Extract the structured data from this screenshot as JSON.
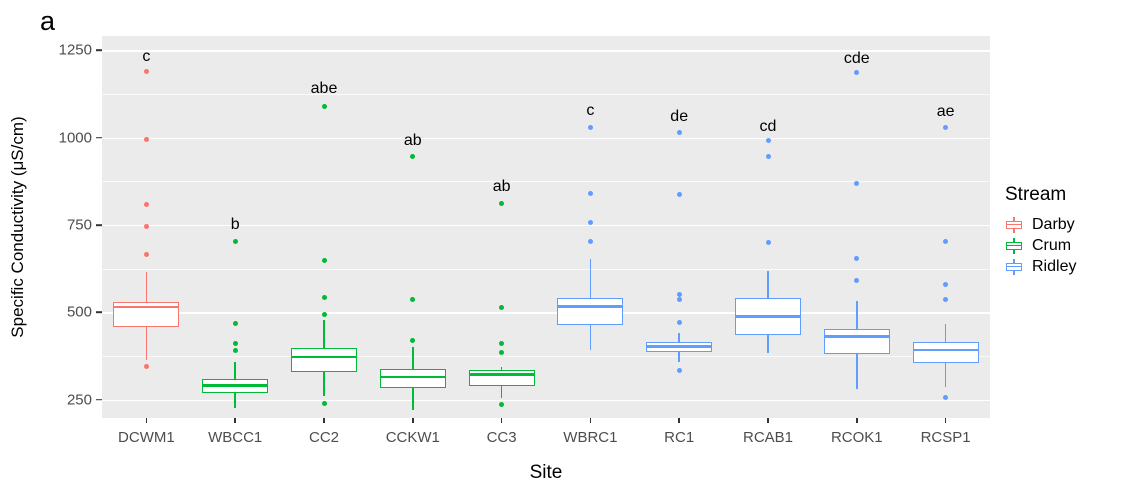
{
  "figure": {
    "panel_label": "a",
    "panel_bg": "#ebebeb",
    "grid_color": "#ffffff",
    "tick_text_color": "#4d4d4d"
  },
  "y_axis": {
    "title": "Specific Conductivity (μS/cm)",
    "ticks": [
      250,
      500,
      750,
      1000,
      1250
    ],
    "minor_ticks": [
      375,
      625,
      875,
      1125
    ]
  },
  "x_axis": {
    "title": "Site"
  },
  "legend": {
    "title": "Stream",
    "entries": [
      {
        "label": "Darby",
        "color": "#F8766D"
      },
      {
        "label": "Crum",
        "color": "#00BA38"
      },
      {
        "label": "Ridley",
        "color": "#619CFF"
      }
    ]
  },
  "chart_data": {
    "type": "boxplot",
    "title": "a",
    "xlabel": "Site",
    "ylabel": "Specific Conductivity (μS/cm)",
    "ylim": [
      198,
      1291
    ],
    "y_ticks": [
      250,
      500,
      750,
      1000,
      1250
    ],
    "grid": true,
    "legend_position": "right",
    "categories": [
      "DCWM1",
      "WBCC1",
      "CC2",
      "CCKW1",
      "CC3",
      "WBRC1",
      "RC1",
      "RCAB1",
      "RCOK1",
      "RCSP1"
    ],
    "groups": [
      {
        "site": "DCWM1",
        "stream": "Darby",
        "letter": "c",
        "letter_y": 1230,
        "whislo": 365,
        "q1": 458,
        "med": 515,
        "q3": 531,
        "whishi": 617,
        "outliers": [
          345,
          665,
          745,
          810,
          995,
          1190
        ]
      },
      {
        "site": "WBCC1",
        "stream": "Crum",
        "letter": "b",
        "letter_y": 750,
        "whislo": 228,
        "q1": 269,
        "med": 291,
        "q3": 310,
        "whishi": 358,
        "outliers": [
          390,
          412,
          467,
          702
        ]
      },
      {
        "site": "CC2",
        "stream": "Crum",
        "letter": "abe",
        "letter_y": 1140,
        "whislo": 260,
        "q1": 329,
        "med": 372,
        "q3": 397,
        "whishi": 478,
        "outliers": [
          240,
          493,
          543,
          648,
          1090
        ]
      },
      {
        "site": "CCKW1",
        "stream": "Crum",
        "letter": "ab",
        "letter_y": 990,
        "whislo": 222,
        "q1": 285,
        "med": 316,
        "q3": 338,
        "whishi": 400,
        "outliers": [
          420,
          538,
          945
        ]
      },
      {
        "site": "CC3",
        "stream": "Crum",
        "letter": "ab",
        "letter_y": 858,
        "whislo": 255,
        "q1": 290,
        "med": 323,
        "q3": 334,
        "whishi": 345,
        "outliers": [
          238,
          385,
          410,
          514,
          812
        ]
      },
      {
        "site": "WBRC1",
        "stream": "Ridley",
        "letter": "c",
        "letter_y": 1075,
        "whislo": 393,
        "q1": 464,
        "med": 517,
        "q3": 542,
        "whishi": 653,
        "outliers": [
          704,
          757,
          840,
          1030
        ]
      },
      {
        "site": "RC1",
        "stream": "Ridley",
        "letter": "de",
        "letter_y": 1058,
        "whislo": 359,
        "q1": 386,
        "med": 402,
        "q3": 415,
        "whishi": 440,
        "outliers": [
          333,
          470,
          538,
          552,
          838,
          1015
        ]
      },
      {
        "site": "RCAB1",
        "stream": "Ridley",
        "letter": "cd",
        "letter_y": 1032,
        "whislo": 383,
        "q1": 436,
        "med": 489,
        "q3": 540,
        "whishi": 619,
        "outliers": [
          700,
          947,
          993
        ]
      },
      {
        "site": "RCOK1",
        "stream": "Ridley",
        "letter": "cde",
        "letter_y": 1225,
        "whislo": 280,
        "q1": 380,
        "med": 431,
        "q3": 453,
        "whishi": 534,
        "outliers": [
          590,
          655,
          870,
          1187
        ]
      },
      {
        "site": "RCSP1",
        "stream": "Ridley",
        "letter": "ae",
        "letter_y": 1073,
        "whislo": 287,
        "q1": 355,
        "med": 392,
        "q3": 415,
        "whishi": 466,
        "outliers": [
          256,
          537,
          580,
          702,
          1028
        ]
      }
    ]
  }
}
